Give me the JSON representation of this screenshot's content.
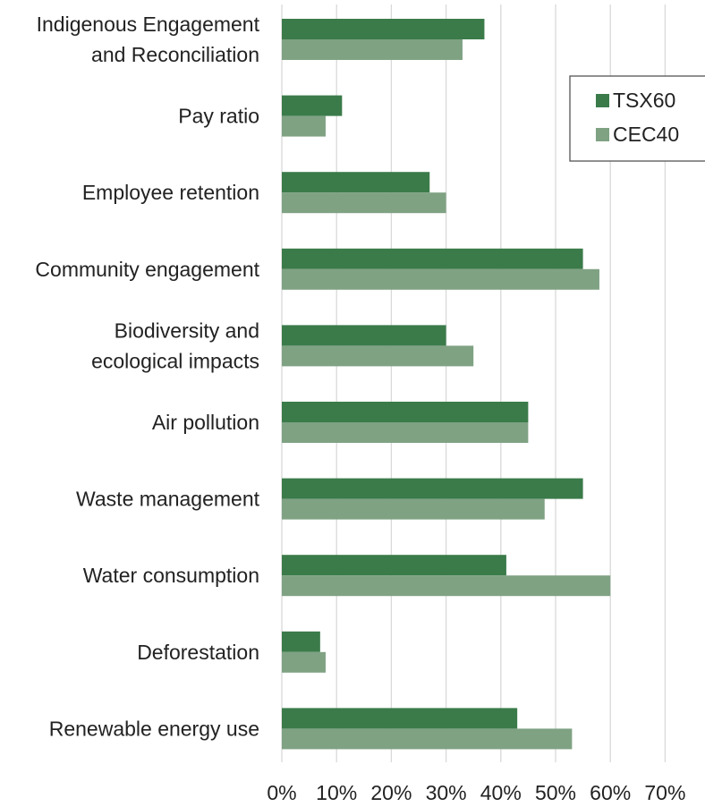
{
  "chart_data": {
    "type": "bar",
    "orientation": "horizontal",
    "title": "",
    "xlabel": "",
    "ylabel": "",
    "xlim": [
      0,
      70
    ],
    "x_ticks": [
      "0%",
      "10%",
      "20%",
      "30%",
      "40%",
      "50%",
      "60%",
      "70%"
    ],
    "grid": "vertical",
    "legend_position": "top-right",
    "categories": [
      "Indigenous Engagement\nand Reconciliation",
      "Pay ratio",
      "Employee retention",
      "Community engagement",
      "Biodiversity and\necological impacts",
      "Air pollution",
      "Waste management",
      "Water consumption",
      "Deforestation",
      "Renewable energy use"
    ],
    "series": [
      {
        "name": "TSX60",
        "color": "#3b7b4a",
        "values": [
          37,
          11,
          27,
          55,
          30,
          45,
          55,
          41,
          7,
          43
        ]
      },
      {
        "name": "CEC40",
        "color": "#7fa283",
        "values": [
          33,
          8,
          30,
          58,
          35,
          45,
          48,
          60,
          8,
          53
        ]
      }
    ]
  }
}
